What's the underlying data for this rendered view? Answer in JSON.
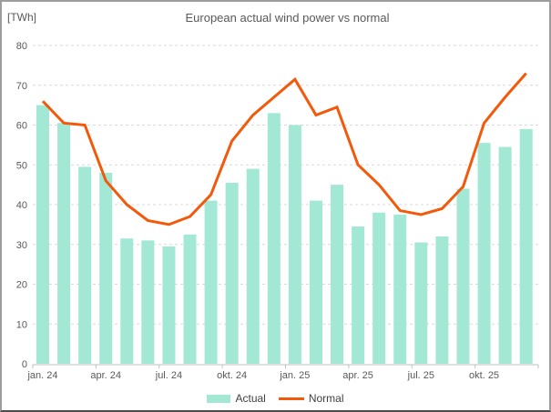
{
  "frame": {
    "title": "European actual wind power vs normal",
    "unit_label": "[TWh]"
  },
  "legend": {
    "actual_label": "Actual",
    "normal_label": "Normal"
  },
  "colors": {
    "bar": "#a2e8d5",
    "line": "#f2590a",
    "grid": "#d9d9d9",
    "axis": "#bfbfbf",
    "text": "#595959"
  },
  "chart_data": {
    "type": "bar+line",
    "title": "European actual wind power vs normal",
    "ylabel": "[TWh]",
    "ylim": [
      0,
      80
    ],
    "yticks": [
      0,
      10,
      20,
      30,
      40,
      50,
      60,
      70,
      80
    ],
    "grid": "dashed-horizontal",
    "legend_position": "bottom-center",
    "months": [
      "jan. 24",
      "feb. 24",
      "mar. 24",
      "apr. 24",
      "mai. 24",
      "jun. 24",
      "jul. 24",
      "aug. 24",
      "sep. 24",
      "okt. 24",
      "nov. 24",
      "des. 24",
      "jan. 25",
      "feb. 25",
      "mar. 25",
      "apr. 25",
      "mai. 25",
      "jun. 25",
      "jul. 25",
      "aug. 25",
      "sep. 25",
      "okt. 25",
      "nov. 25",
      "des. 25"
    ],
    "x_tick_labels": [
      "jan. 24",
      "apr. 24",
      "jul. 24",
      "okt. 24",
      "jan. 25",
      "apr. 25",
      "jul. 25",
      "okt. 25"
    ],
    "x_tick_every": 3,
    "series": [
      {
        "name": "Actual",
        "type": "bar",
        "color": "#a2e8d5",
        "values": [
          65,
          60.5,
          49.5,
          48,
          31.5,
          31,
          29.5,
          32.5,
          41,
          45.5,
          49,
          63,
          60,
          41,
          45,
          34.5,
          38,
          37.5,
          30.5,
          32,
          44,
          55.5,
          54.5,
          59
        ]
      },
      {
        "name": "Normal",
        "type": "line",
        "color": "#f2590a",
        "values": [
          66,
          60.5,
          60,
          46,
          40,
          36,
          35,
          37,
          42.5,
          56,
          62.5,
          67,
          71.5,
          62.5,
          64.5,
          50,
          45,
          38.5,
          37.5,
          39,
          44.5,
          60.5,
          67,
          73
        ]
      }
    ]
  }
}
